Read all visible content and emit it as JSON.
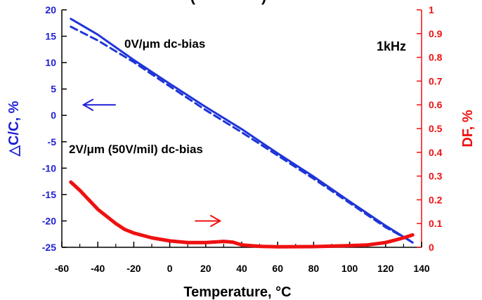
{
  "chart_data": {
    "type": "line",
    "title": "(··· ·········)",
    "xlabel": "Temperature, °C",
    "ylabel_left": "△C/C, %",
    "ylabel_right": "DF, %",
    "xlim": [
      -60,
      140
    ],
    "ylim_left": [
      -25,
      20
    ],
    "ylim_right": [
      0,
      1
    ],
    "x_ticks": [
      "-60",
      "-40",
      "-20",
      "0",
      "20",
      "40",
      "60",
      "80",
      "100",
      "120",
      "140"
    ],
    "y_left_ticks": [
      "-25",
      "-20",
      "-15",
      "-10",
      "-5",
      "0",
      "5",
      "10",
      "15",
      "20"
    ],
    "y_right_ticks": [
      "0",
      "0.1",
      "0.2",
      "0.3",
      "0.4",
      "0.5",
      "0.6",
      "0.7",
      "0.8",
      "0.9",
      "1"
    ],
    "annotations": {
      "bias0": "0V/μm dc-bias",
      "bias2": "2V/μm (50V/mil) dc-bias",
      "freq": "1kHz"
    },
    "colors": {
      "left_axis": "#1f1fd6",
      "right_axis": "#ee1111",
      "capacitance": "#1f35d8",
      "df": "#ee1111"
    },
    "series": [
      {
        "axis": "left",
        "style": "solid",
        "x": [
          -55,
          -40,
          -20,
          0,
          20,
          40,
          60,
          80,
          100,
          120,
          135
        ],
        "y": [
          18.3,
          15.3,
          10.5,
          6.0,
          1.6,
          -2.6,
          -7.2,
          -11.6,
          -16.3,
          -20.9,
          -24.1
        ]
      },
      {
        "axis": "left",
        "style": "dashed",
        "x": [
          -55,
          -40,
          -20,
          0,
          20,
          40,
          60,
          80,
          100,
          120,
          135
        ],
        "y": [
          16.8,
          14.2,
          10.1,
          5.5,
          1.0,
          -3.2,
          -7.6,
          -12.0,
          -16.6,
          -21.2,
          -24.0
        ]
      },
      {
        "axis": "right",
        "style": "solid",
        "x": [
          -55,
          -50,
          -45,
          -40,
          -35,
          -30,
          -25,
          -20,
          -10,
          0,
          10,
          20,
          30,
          35,
          40,
          50,
          60,
          80,
          100,
          110,
          120,
          125,
          130,
          135
        ],
        "y": [
          0.275,
          0.24,
          0.2,
          0.16,
          0.13,
          0.1,
          0.075,
          0.06,
          0.04,
          0.027,
          0.02,
          0.02,
          0.025,
          0.022,
          0.01,
          0.004,
          0.002,
          0.003,
          0.007,
          0.01,
          0.02,
          0.03,
          0.04,
          0.052
        ]
      }
    ],
    "arrows": [
      {
        "axis": "left",
        "x_from": -30,
        "x_to": -48,
        "y": 2.0,
        "color": "#1f1fd6"
      },
      {
        "axis": "left",
        "x_from": 14,
        "x_to": 28,
        "y": -20.0,
        "color": "#ee1111"
      }
    ]
  }
}
